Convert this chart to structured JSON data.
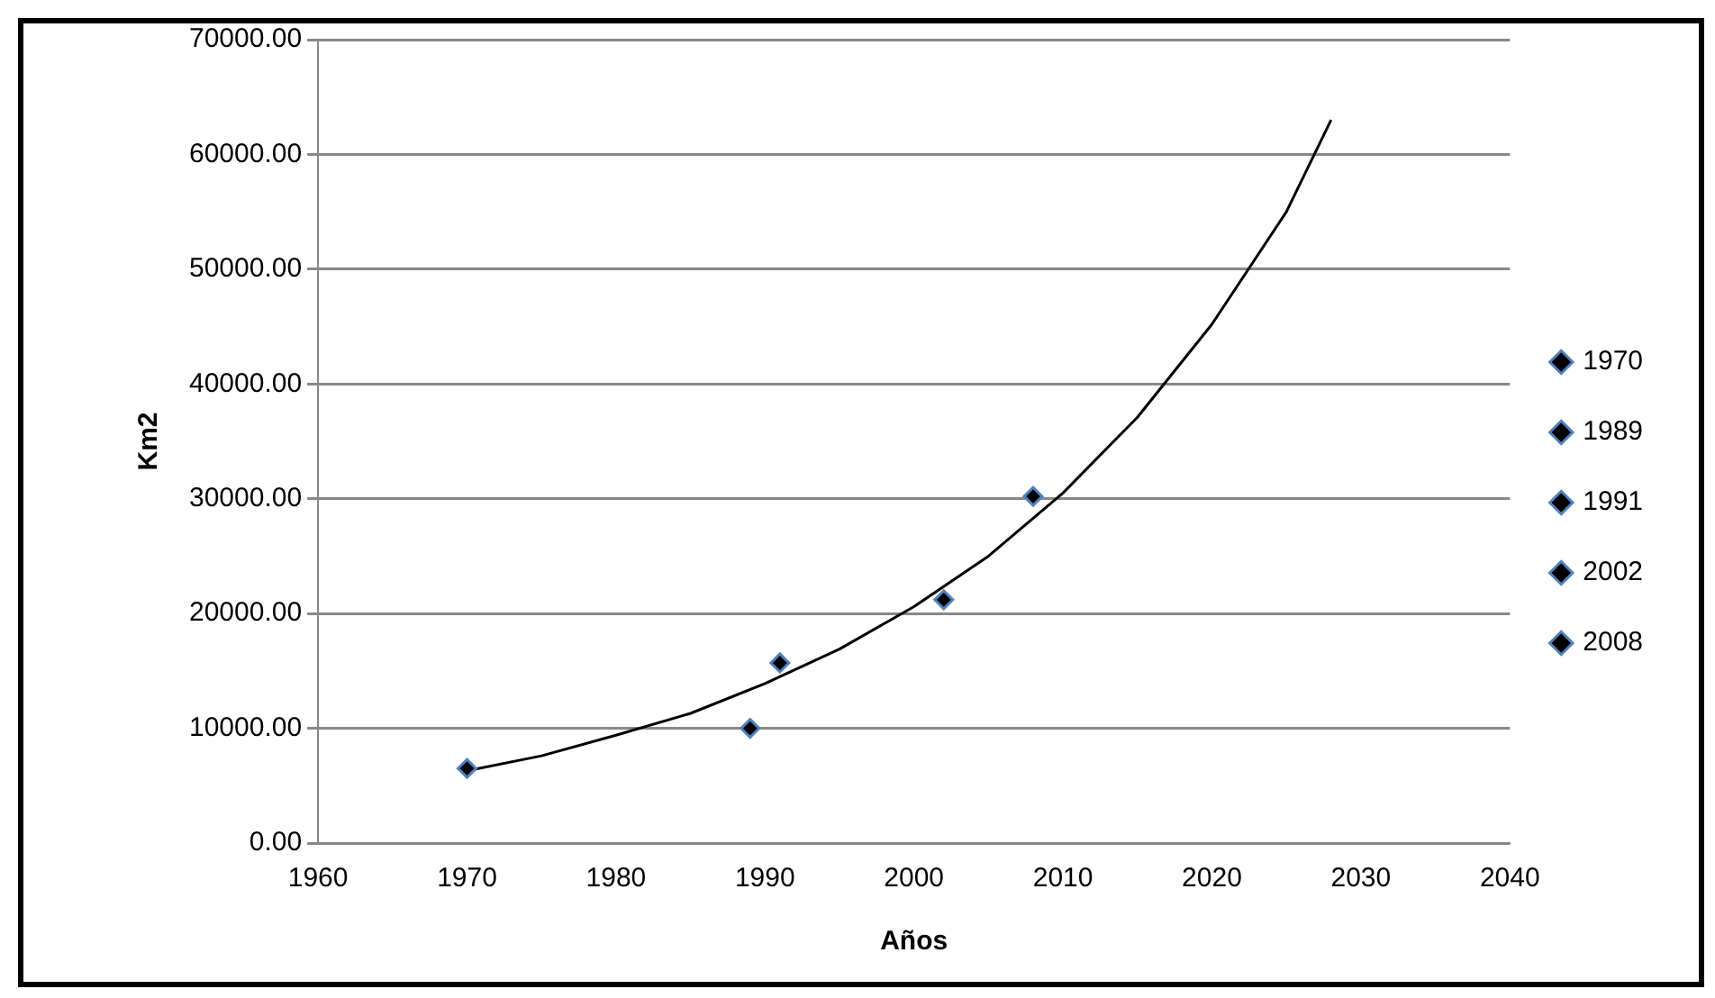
{
  "chart_data": {
    "type": "scatter",
    "xlabel": "Años",
    "ylabel": "Km2",
    "series": [
      {
        "name": "1970",
        "color": "#000000",
        "x": [
          1970
        ],
        "values": [
          6500
        ]
      },
      {
        "name": "1989",
        "color": "#000000",
        "x": [
          1989
        ],
        "values": [
          10000
        ]
      },
      {
        "name": "1991",
        "color": "#000000",
        "x": [
          1991
        ],
        "values": [
          15700
        ]
      },
      {
        "name": "2002",
        "color": "#000000",
        "x": [
          2002
        ],
        "values": [
          21200
        ]
      },
      {
        "name": "2008",
        "color": "#000000",
        "x": [
          2008
        ],
        "values": [
          30200
        ]
      },
      {
        "type": "line",
        "color": "#000000",
        "marker": "none",
        "x": [
          1970,
          1975,
          1980,
          1985,
          1990,
          1995,
          2000,
          2005,
          2010,
          2015,
          2020,
          2025,
          2028
        ],
        "values": [
          6300,
          7600,
          9400,
          11300,
          13900,
          16900,
          20600,
          25000,
          30500,
          37100,
          45200,
          55000,
          63000
        ]
      }
    ],
    "marker": "diamond",
    "xlim": [
      1960,
      2040
    ],
    "xticks": [
      1960,
      1970,
      1980,
      1990,
      2000,
      2010,
      2020,
      2030,
      2040
    ],
    "ylim": [
      0,
      70000
    ],
    "yticks": [
      {
        "value": 0,
        "label": "0.00"
      },
      {
        "value": 10000,
        "label": "10000.00"
      },
      {
        "value": 20000,
        "label": "20000.00"
      },
      {
        "value": 30000,
        "label": "30000.00"
      },
      {
        "value": 40000,
        "label": "40000.00"
      },
      {
        "value": 50000,
        "label": "50000.00"
      },
      {
        "value": 60000,
        "label": "60000.00"
      },
      {
        "value": 70000,
        "label": "70000.00"
      }
    ],
    "grid": "y",
    "legend": "right"
  }
}
